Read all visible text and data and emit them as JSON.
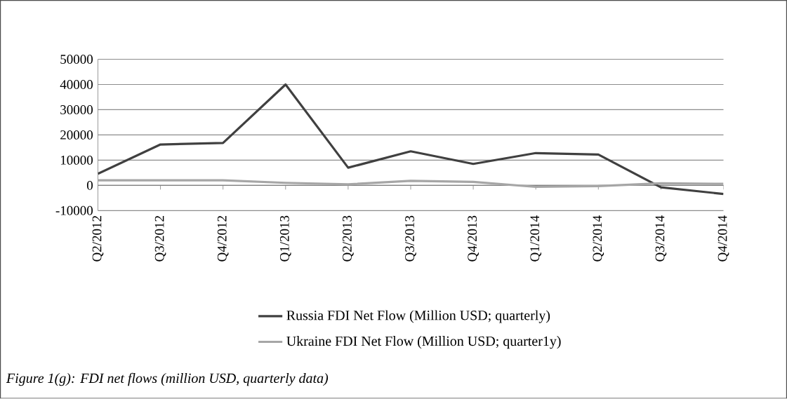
{
  "chart_data": {
    "type": "line",
    "categories": [
      "Q2/2012",
      "Q3/2012",
      "Q4/2012",
      "Q1/2013",
      "Q2/2013",
      "Q3/2013",
      "Q4/2013",
      "Q1/2014",
      "Q2/2014",
      "Q3/2014",
      "Q4/2014"
    ],
    "series": [
      {
        "name": "Russia FDI Net Flow (Million USD; quarterly)",
        "color": "#404040",
        "values": [
          4600,
          16200,
          16800,
          40000,
          7000,
          13500,
          8500,
          12800,
          12200,
          -800,
          -3400
        ]
      },
      {
        "name": "Ukraine FDI Net Flow (Million USD; quarter1y)",
        "color": "#a6a6a6",
        "values": [
          2000,
          2000,
          2000,
          1000,
          400,
          1800,
          1400,
          -600,
          -300,
          800,
          600
        ]
      }
    ],
    "ylim": [
      -10000,
      50000
    ],
    "yticks": [
      -10000,
      0,
      10000,
      20000,
      30000,
      40000,
      50000
    ],
    "grid": "y",
    "legend": "bottom",
    "marker": "none",
    "line_style": "solid",
    "annotations": [
      "Figure 1(g): FDI net flows (million USD, quarterly data)"
    ]
  }
}
